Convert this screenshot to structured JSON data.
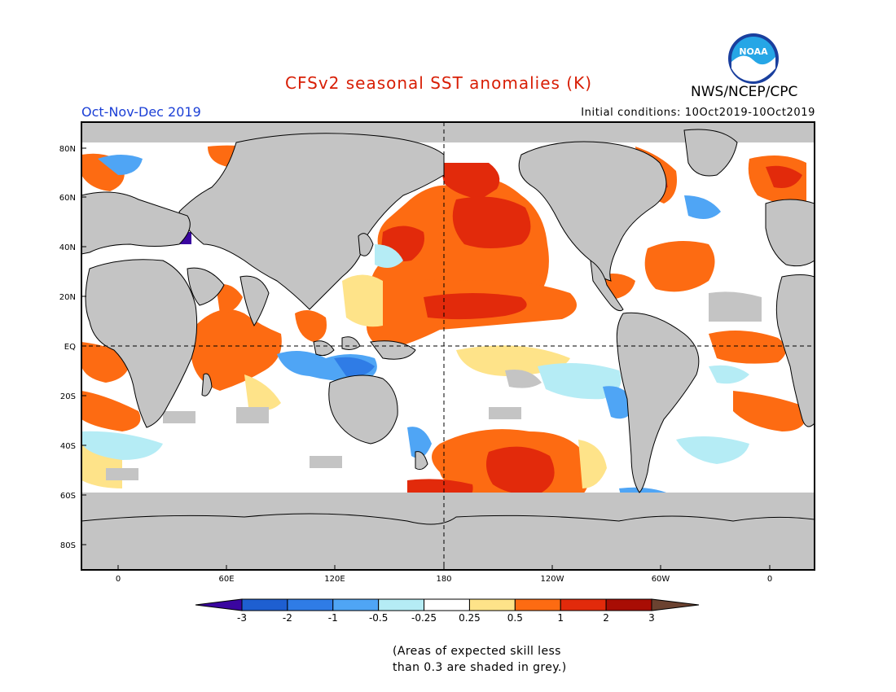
{
  "title": "CFSv2 seasonal SST anomalies (K)",
  "season": "Oct-Nov-Dec 2019",
  "initial_conditions": "Initial conditions: 10Oct2019-10Oct2019",
  "agency": "NWS/NCEP/CPC",
  "logo_text": "NOAA",
  "map": {
    "lat_labels": [
      "80N",
      "60N",
      "40N",
      "20N",
      "EQ",
      "20S",
      "40S",
      "60S",
      "80S"
    ],
    "lon_labels": [
      "0",
      "60E",
      "120E",
      "180",
      "120W",
      "60W",
      "0"
    ],
    "grey_meaning": "skill < 0.3",
    "highlights": [
      {
        "region": "North Pacific",
        "anomaly_K": "1 to 2"
      },
      {
        "region": "Central equatorial Pacific",
        "anomaly_K": "0.5 to 1"
      },
      {
        "region": "Western Indian Ocean",
        "anomaly_K": "0.5 to 1"
      },
      {
        "region": "Maritime continent",
        "anomaly_K": "-1 to -0.25"
      },
      {
        "region": "South Pacific (40S-60S)",
        "anomaly_K": "1 to 2"
      }
    ]
  },
  "colorbar": {
    "labels": [
      "-3",
      "-2",
      "-1",
      "-0.5",
      "-0.25",
      "0.25",
      "0.5",
      "1",
      "2",
      "3"
    ],
    "colors": [
      "#3a06a0",
      "#1e5fd1",
      "#2f7ce6",
      "#4fa5f5",
      "#b5ecf5",
      "#ffffff",
      "#fee389",
      "#fd6b12",
      "#e22a0b",
      "#a80d04",
      "#6b4230"
    ]
  },
  "footnote": {
    "line1": "(Areas of expected skill less",
    "line2": "than 0.3 are shaded in grey.)"
  },
  "colors": {
    "title": "#d81e05",
    "season": "#1b3fd6",
    "land": "#c4c4c4",
    "noskill": "#c4c4c4"
  }
}
